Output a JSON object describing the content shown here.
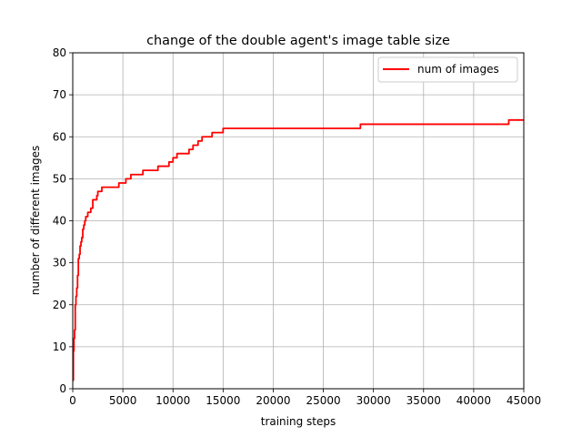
{
  "chart_data": {
    "type": "line",
    "title": "change of the double agent's image table size",
    "xlabel": "training steps",
    "ylabel": "number of different images",
    "xlim": [
      0,
      45000
    ],
    "ylim": [
      0,
      80
    ],
    "xticks": [
      0,
      5000,
      10000,
      15000,
      20000,
      25000,
      30000,
      35000,
      40000,
      45000
    ],
    "xtick_labels": [
      "0",
      "5000",
      "10000",
      "15000",
      "20000",
      "25000",
      "30000",
      "35000",
      "40000",
      "45000"
    ],
    "yticks": [
      0,
      10,
      20,
      30,
      40,
      50,
      60,
      70,
      80
    ],
    "ytick_labels": [
      "0",
      "10",
      "20",
      "30",
      "40",
      "50",
      "60",
      "70",
      "80"
    ],
    "grid": true,
    "legend_position": "top-right",
    "series": [
      {
        "name": "num of images",
        "color": "#ff0000",
        "x": [
          0,
          60,
          120,
          180,
          250,
          320,
          400,
          480,
          560,
          650,
          730,
          820,
          900,
          1000,
          1100,
          1200,
          1300,
          1400,
          1500,
          1650,
          1800,
          2000,
          2200,
          2400,
          2500,
          2700,
          2900,
          3100,
          3300,
          3500,
          3800,
          4200,
          4600,
          5000,
          5300,
          5600,
          5800,
          6100,
          6400,
          6700,
          7000,
          7300,
          7600,
          8000,
          8500,
          8900,
          9200,
          9600,
          10000,
          10400,
          10800,
          11000,
          11300,
          11600,
          12000,
          12500,
          12900,
          13300,
          13600,
          13900,
          14200,
          14500,
          15000,
          15400,
          15800,
          16200,
          16600,
          17000,
          20000,
          25000,
          27900,
          28300,
          28700,
          29200,
          30000,
          35000,
          40000,
          42500,
          42800,
          43200,
          43500,
          44000,
          45000
        ],
        "y": [
          2,
          9,
          12,
          14,
          20,
          22,
          24,
          27,
          31,
          32,
          34,
          35,
          36,
          38,
          39,
          40,
          41,
          41,
          42,
          42,
          43,
          45,
          45,
          46,
          47,
          47,
          48,
          48,
          48,
          48,
          48,
          48,
          49,
          49,
          50,
          50,
          51,
          51,
          51,
          51,
          52,
          52,
          52,
          52,
          53,
          53,
          53,
          54,
          55,
          56,
          56,
          56,
          56,
          57,
          58,
          59,
          60,
          60,
          60,
          61,
          61,
          61,
          62,
          62,
          62,
          62,
          62,
          62,
          62,
          62,
          62,
          62,
          63,
          63,
          63,
          63,
          63,
          63,
          63,
          63,
          64,
          64,
          64
        ]
      }
    ]
  }
}
